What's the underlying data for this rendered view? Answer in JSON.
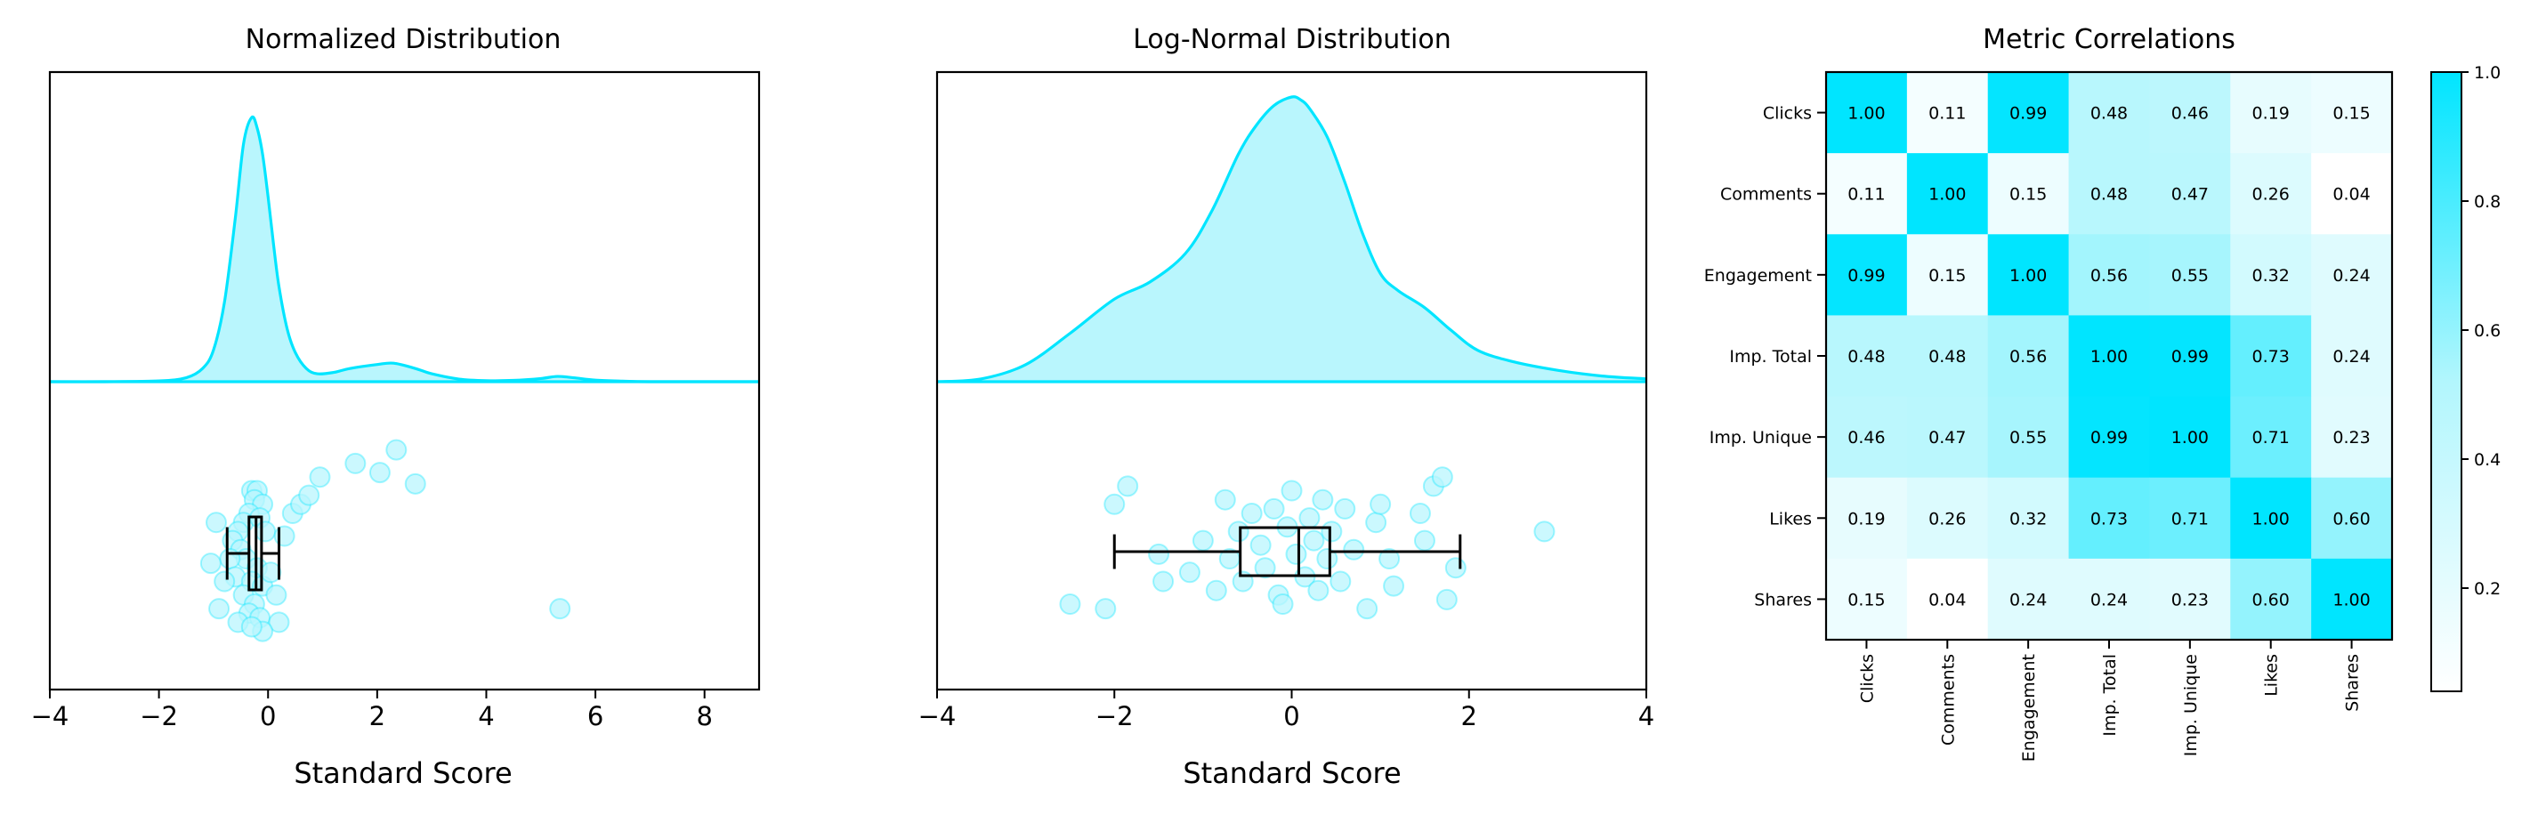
{
  "theme": {
    "accent": "#00e5ff",
    "fill": "#b9f6fd",
    "point_fill": "#b9f6fd",
    "box": "#000000",
    "cell_text": "#000000"
  },
  "chart_data": [
    {
      "type": "raincloud",
      "title": "Normalized Distribution",
      "xlabel": "Standard Score",
      "ylabel": "",
      "xlim": [
        -4,
        9
      ],
      "xticks": [
        -4,
        -2,
        0,
        2,
        4,
        6,
        8
      ],
      "density": {
        "x": [
          -4,
          -3,
          -2,
          -1.5,
          -1.2,
          -1.0,
          -0.8,
          -0.6,
          -0.45,
          -0.3,
          -0.2,
          -0.1,
          0.0,
          0.1,
          0.2,
          0.35,
          0.5,
          0.7,
          0.9,
          1.2,
          1.5,
          2.0,
          2.3,
          2.7,
          3.0,
          3.5,
          4.0,
          4.5,
          5.0,
          5.3,
          5.6,
          6.0,
          6.5,
          7.0,
          8.0,
          9.0
        ],
        "y": [
          0,
          0,
          0.003,
          0.015,
          0.05,
          0.12,
          0.3,
          0.62,
          0.9,
          1.0,
          0.96,
          0.86,
          0.7,
          0.52,
          0.36,
          0.2,
          0.11,
          0.05,
          0.03,
          0.035,
          0.05,
          0.065,
          0.07,
          0.05,
          0.03,
          0.01,
          0.004,
          0.005,
          0.012,
          0.02,
          0.015,
          0.006,
          0.002,
          0,
          0,
          0
        ]
      },
      "box": {
        "whisker_low": -0.75,
        "q1": -0.35,
        "median": -0.22,
        "q3": -0.12,
        "whisker_high": 0.2
      },
      "points": [
        {
          "x": -0.3,
          "y": 0.7
        },
        {
          "x": -0.2,
          "y": 0.7
        },
        {
          "x": -0.25,
          "y": 0.66
        },
        {
          "x": -0.1,
          "y": 0.64
        },
        {
          "x": -0.35,
          "y": 0.6
        },
        {
          "x": -0.45,
          "y": 0.56
        },
        {
          "x": -0.15,
          "y": 0.58
        },
        {
          "x": -0.55,
          "y": 0.52
        },
        {
          "x": -0.05,
          "y": 0.52
        },
        {
          "x": -0.65,
          "y": 0.48
        },
        {
          "x": -0.5,
          "y": 0.44
        },
        {
          "x": -0.4,
          "y": 0.4
        },
        {
          "x": -0.7,
          "y": 0.4
        },
        {
          "x": -0.2,
          "y": 0.36
        },
        {
          "x": -0.6,
          "y": 0.32
        },
        {
          "x": -0.3,
          "y": 0.3
        },
        {
          "x": -0.1,
          "y": 0.28
        },
        {
          "x": -0.45,
          "y": 0.24
        },
        {
          "x": -0.25,
          "y": 0.2
        },
        {
          "x": -0.35,
          "y": 0.16
        },
        {
          "x": -0.15,
          "y": 0.14
        },
        {
          "x": -0.95,
          "y": 0.56
        },
        {
          "x": -1.05,
          "y": 0.38
        },
        {
          "x": -0.8,
          "y": 0.3
        },
        {
          "x": -0.9,
          "y": 0.18
        },
        {
          "x": -0.55,
          "y": 0.12
        },
        {
          "x": 0.05,
          "y": 0.34
        },
        {
          "x": 0.15,
          "y": 0.24
        },
        {
          "x": 0.2,
          "y": 0.12
        },
        {
          "x": -0.1,
          "y": 0.08
        },
        {
          "x": -0.3,
          "y": 0.1
        },
        {
          "x": 0.3,
          "y": 0.5
        },
        {
          "x": 0.45,
          "y": 0.6
        },
        {
          "x": 0.6,
          "y": 0.64
        },
        {
          "x": 0.75,
          "y": 0.68
        },
        {
          "x": 0.95,
          "y": 0.76
        },
        {
          "x": 1.6,
          "y": 0.82
        },
        {
          "x": 2.05,
          "y": 0.78
        },
        {
          "x": 2.35,
          "y": 0.88
        },
        {
          "x": 2.7,
          "y": 0.73
        },
        {
          "x": 5.35,
          "y": 0.18
        }
      ]
    },
    {
      "type": "raincloud",
      "title": "Log-Normal Distribution",
      "xlabel": "Standard Score",
      "ylabel": "",
      "xlim": [
        -4,
        4
      ],
      "xticks": [
        -4,
        -2,
        0,
        2,
        4
      ],
      "density": {
        "x": [
          -4.0,
          -3.5,
          -3.0,
          -2.5,
          -2.0,
          -1.6,
          -1.2,
          -0.9,
          -0.6,
          -0.4,
          -0.2,
          0.0,
          0.1,
          0.2,
          0.4,
          0.6,
          0.8,
          1.0,
          1.2,
          1.5,
          1.8,
          2.1,
          2.5,
          3.0,
          3.5,
          4.0
        ],
        "y": [
          0.0,
          0.01,
          0.06,
          0.17,
          0.29,
          0.35,
          0.45,
          0.6,
          0.8,
          0.9,
          0.97,
          1.0,
          0.99,
          0.96,
          0.86,
          0.7,
          0.52,
          0.38,
          0.32,
          0.26,
          0.18,
          0.11,
          0.07,
          0.04,
          0.02,
          0.01
        ]
      },
      "box": {
        "whisker_low": -2.0,
        "q1": -0.58,
        "median": 0.08,
        "q3": 0.43,
        "whisker_high": 1.9
      },
      "points": [
        {
          "x": -2.5,
          "y": 0.2
        },
        {
          "x": -2.1,
          "y": 0.18
        },
        {
          "x": -2.0,
          "y": 0.64
        },
        {
          "x": -1.85,
          "y": 0.72
        },
        {
          "x": -1.5,
          "y": 0.42
        },
        {
          "x": -1.45,
          "y": 0.3
        },
        {
          "x": -1.15,
          "y": 0.34
        },
        {
          "x": -1.0,
          "y": 0.48
        },
        {
          "x": -0.85,
          "y": 0.26
        },
        {
          "x": -0.75,
          "y": 0.66
        },
        {
          "x": -0.7,
          "y": 0.4
        },
        {
          "x": -0.6,
          "y": 0.52
        },
        {
          "x": -0.55,
          "y": 0.3
        },
        {
          "x": -0.45,
          "y": 0.6
        },
        {
          "x": -0.35,
          "y": 0.46
        },
        {
          "x": -0.3,
          "y": 0.36
        },
        {
          "x": -0.2,
          "y": 0.62
        },
        {
          "x": -0.15,
          "y": 0.24
        },
        {
          "x": -0.05,
          "y": 0.54
        },
        {
          "x": 0.0,
          "y": 0.7
        },
        {
          "x": 0.05,
          "y": 0.42
        },
        {
          "x": 0.15,
          "y": 0.32
        },
        {
          "x": 0.2,
          "y": 0.58
        },
        {
          "x": 0.25,
          "y": 0.48
        },
        {
          "x": 0.3,
          "y": 0.26
        },
        {
          "x": 0.35,
          "y": 0.66
        },
        {
          "x": 0.4,
          "y": 0.4
        },
        {
          "x": 0.45,
          "y": 0.52
        },
        {
          "x": 0.55,
          "y": 0.3
        },
        {
          "x": 0.6,
          "y": 0.62
        },
        {
          "x": 0.7,
          "y": 0.44
        },
        {
          "x": 0.85,
          "y": 0.18
        },
        {
          "x": 0.95,
          "y": 0.56
        },
        {
          "x": 1.1,
          "y": 0.4
        },
        {
          "x": 1.15,
          "y": 0.28
        },
        {
          "x": 1.45,
          "y": 0.6
        },
        {
          "x": 1.5,
          "y": 0.48
        },
        {
          "x": 1.6,
          "y": 0.72
        },
        {
          "x": 1.7,
          "y": 0.76
        },
        {
          "x": 1.75,
          "y": 0.22
        },
        {
          "x": 1.85,
          "y": 0.36
        },
        {
          "x": 2.85,
          "y": 0.52
        },
        {
          "x": -0.1,
          "y": 0.2
        },
        {
          "x": 1.0,
          "y": 0.64
        }
      ]
    },
    {
      "type": "heatmap",
      "title": "Metric Correlations",
      "labels": [
        "Clicks",
        "Comments",
        "Engagement",
        "Imp. Total",
        "Imp. Unique",
        "Likes",
        "Shares"
      ],
      "matrix": [
        [
          1.0,
          0.11,
          0.99,
          0.48,
          0.46,
          0.19,
          0.15
        ],
        [
          0.11,
          1.0,
          0.15,
          0.48,
          0.47,
          0.26,
          0.04
        ],
        [
          0.99,
          0.15,
          1.0,
          0.56,
          0.55,
          0.32,
          0.24
        ],
        [
          0.48,
          0.48,
          0.56,
          1.0,
          0.99,
          0.73,
          0.24
        ],
        [
          0.46,
          0.47,
          0.55,
          0.99,
          1.0,
          0.71,
          0.23
        ],
        [
          0.19,
          0.26,
          0.32,
          0.73,
          0.71,
          1.0,
          0.6
        ],
        [
          0.15,
          0.04,
          0.24,
          0.24,
          0.23,
          0.6,
          1.0
        ]
      ],
      "colorbar": {
        "vmin": 0.04,
        "vmax": 1.0,
        "ticks": [
          0.2,
          0.4,
          0.6,
          0.8,
          1.0
        ],
        "tick_labels": [
          "0.2",
          "0.4",
          "0.6",
          "0.8",
          "1.0"
        ]
      }
    }
  ]
}
